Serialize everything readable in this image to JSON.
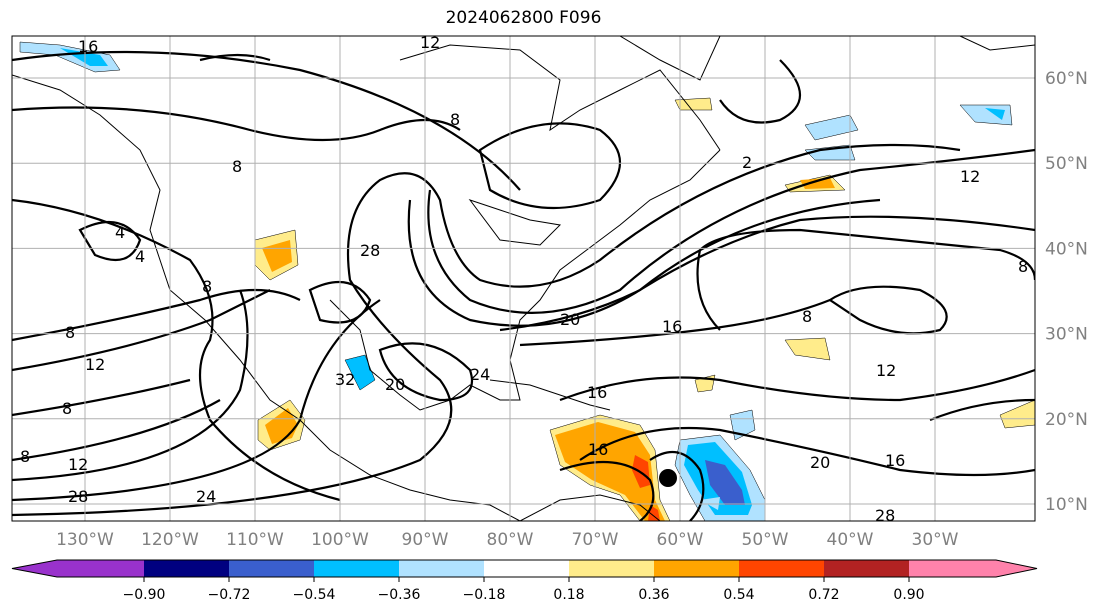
{
  "title": "2024062800 F096",
  "lon_labels": [
    "130°W",
    "120°W",
    "110°W",
    "100°W",
    "90°W",
    "80°W",
    "70°W",
    "60°W",
    "50°W",
    "40°W",
    "30°W"
  ],
  "lat_labels": [
    "60°N",
    "50°N",
    "40°N",
    "30°N",
    "20°N",
    "10°N"
  ],
  "colorbar": {
    "levels": [
      "−0.90",
      "−0.72",
      "−0.54",
      "−0.36",
      "−0.18",
      "0.18",
      "0.36",
      "0.54",
      "0.72",
      "0.90"
    ],
    "colors": [
      "#9932cc",
      "#000080",
      "#3a5fcd",
      "#00bfff",
      "#b0e2ff",
      "#ffffff",
      "#ffec8b",
      "#ffa500",
      "#ff4500",
      "#b22222",
      "#ff82ab"
    ],
    "extend": "both"
  },
  "contour_labels": [
    "16",
    "8",
    "4",
    "4",
    "8",
    "8",
    "12",
    "8",
    "8",
    "12",
    "28",
    "24",
    "28",
    "32",
    "20",
    "24",
    "20",
    "16",
    "16",
    "16",
    "20",
    "16",
    "12",
    "8",
    "8",
    "12",
    "28",
    "12",
    "2",
    "8"
  ],
  "storm_marker": "storm-center"
}
